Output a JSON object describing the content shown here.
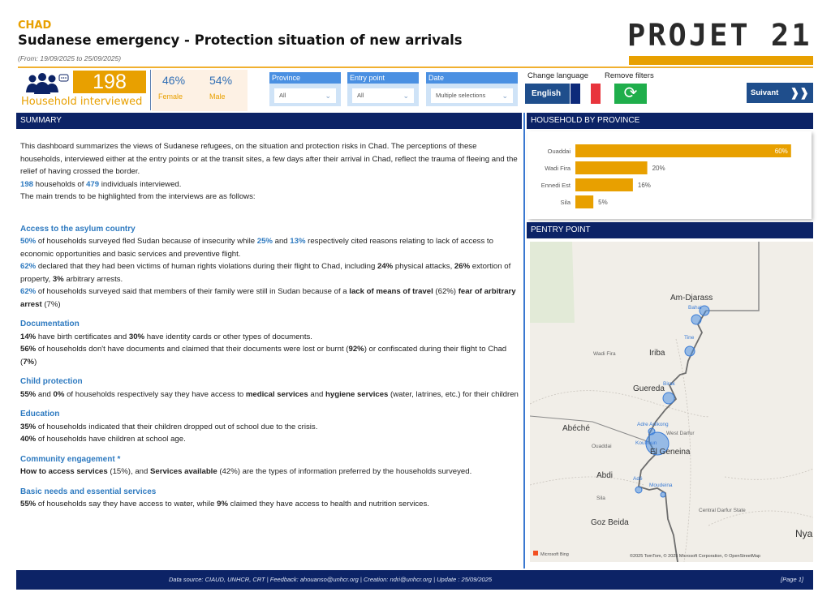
{
  "header": {
    "country": "CHAD",
    "title": "Sudanese emergency - Protection situation of new arrivals",
    "date_range": "(From: 19/09/2025  to  25/09/2025)",
    "logo_text": "PROJET 21"
  },
  "kpi": {
    "households": "198",
    "households_label": "Household interviewed",
    "female_pct": "46%",
    "female_label": "Female",
    "male_pct": "54%",
    "male_label": "Male"
  },
  "filters": [
    {
      "label": "Province",
      "value": "All"
    },
    {
      "label": "Entry point",
      "value": "All"
    },
    {
      "label": "Date",
      "value": "Multiple selections"
    }
  ],
  "controls": {
    "change_language": "Change language",
    "remove_filters": "Remove filters",
    "english": "English",
    "next": "Suivant",
    "next_icon": "double-chevron-right",
    "refresh_icon": "refresh"
  },
  "colors": {
    "accent": "#e8a000",
    "navy": "#0c2366",
    "blue_text": "#2e7ac0",
    "green": "#1fae4b"
  },
  "summary": {
    "heading": "SUMMARY",
    "blocks": [
      {
        "type": "p",
        "segs": [
          {
            "t": "This dashboard summarizes the views of Sudanese refugees, on the situation and protection risks in Chad. The perceptions of these households, interviewed either at the entry points or at the transit sites, a few days after their arrival in Chad, reflect the trauma of fleeing and the relief of having crossed the border."
          }
        ]
      },
      {
        "type": "p",
        "segs": [
          {
            "t": "198",
            "s": "blue"
          },
          {
            "t": " households of "
          },
          {
            "t": "479",
            "s": "blue"
          },
          {
            "t": " individuals interviewed."
          }
        ]
      },
      {
        "type": "p",
        "segs": [
          {
            "t": "The main trends to be highlighted from the interviews are as follows:"
          }
        ]
      },
      {
        "type": "gap"
      },
      {
        "type": "sec",
        "segs": [
          {
            "t": "Access to the asylum country"
          }
        ]
      },
      {
        "type": "p",
        "segs": [
          {
            "t": "50%",
            "s": "blue"
          },
          {
            "t": " of households surveyed fled Sudan because of insecurity while "
          },
          {
            "t": "25%",
            "s": "blue"
          },
          {
            "t": " and "
          },
          {
            "t": "13%",
            "s": "blue"
          },
          {
            "t": " respectively cited reasons relating to lack of access to economic opportunities and basic services and preventive flight."
          }
        ]
      },
      {
        "type": "p",
        "segs": [
          {
            "t": "62%",
            "s": "blue"
          },
          {
            "t": " declared that they had been victims of human rights violations during their flight to Chad, including "
          },
          {
            "t": "24%",
            "s": "b"
          },
          {
            "t": " physical attacks, "
          },
          {
            "t": "26%",
            "s": "b"
          },
          {
            "t": " extortion of property, "
          },
          {
            "t": "3%",
            "s": "b"
          },
          {
            "t": " arbitrary arrests."
          }
        ]
      },
      {
        "type": "p",
        "segs": [
          {
            "t": "62%",
            "s": "blue"
          },
          {
            "t": " of households surveyed said that members of their family were still in Sudan because of a "
          },
          {
            "t": "lack of means of travel",
            "s": "b"
          },
          {
            "t": " (62%) "
          },
          {
            "t": "fear of arbitrary arrest",
            "s": "b"
          },
          {
            "t": " (7%)"
          }
        ]
      },
      {
        "type": "sec",
        "segs": [
          {
            "t": "Documentation"
          }
        ]
      },
      {
        "type": "p",
        "segs": [
          {
            "t": "14%",
            "s": "b"
          },
          {
            "t": " have birth certificates and "
          },
          {
            "t": "30%",
            "s": "b"
          },
          {
            "t": " have identity cards or other types of documents."
          }
        ]
      },
      {
        "type": "p",
        "segs": [
          {
            "t": "56%",
            "s": "b"
          },
          {
            "t": " of households don't have documents and claimed that their documents were lost or burnt ("
          },
          {
            "t": "92%",
            "s": "b"
          },
          {
            "t": ") or confiscated during their flight to Chad ("
          },
          {
            "t": "7%",
            "s": "b"
          },
          {
            "t": ")"
          }
        ]
      },
      {
        "type": "sec",
        "segs": [
          {
            "t": "Child protection"
          }
        ]
      },
      {
        "type": "p",
        "segs": [
          {
            "t": "55%",
            "s": "b"
          },
          {
            "t": " and "
          },
          {
            "t": "0%",
            "s": "b"
          },
          {
            "t": " of households respectively say they have access to "
          },
          {
            "t": "medical services",
            "s": "b"
          },
          {
            "t": " and "
          },
          {
            "t": "hygiene services",
            "s": "b"
          },
          {
            "t": " (water, latrines, etc.) for their children"
          }
        ]
      },
      {
        "type": "sec",
        "segs": [
          {
            "t": "Education"
          }
        ]
      },
      {
        "type": "p",
        "segs": [
          {
            "t": "35%",
            "s": "b"
          },
          {
            "t": " of households indicated that their children dropped out of school due to the crisis."
          }
        ]
      },
      {
        "type": "p",
        "segs": [
          {
            "t": "40%",
            "s": "b"
          },
          {
            "t": " of households have children at school age."
          }
        ]
      },
      {
        "type": "sec",
        "segs": [
          {
            "t": "Community engagement *"
          }
        ]
      },
      {
        "type": "p",
        "segs": [
          {
            "t": "How to access services",
            "s": "b"
          },
          {
            "t": " (15%), and "
          },
          {
            "t": "Services available",
            "s": "b"
          },
          {
            "t": " (42%) are the types of information preferred by the households surveyed."
          }
        ]
      },
      {
        "type": "sec",
        "segs": [
          {
            "t": "Basic needs and essential services"
          }
        ]
      },
      {
        "type": "p",
        "segs": [
          {
            "t": "55%",
            "s": "b"
          },
          {
            "t": " of households say they have access to water, while "
          },
          {
            "t": "9%",
            "s": "b"
          },
          {
            "t": " claimed they have access to health and nutrition services."
          }
        ]
      }
    ]
  },
  "province_panel": {
    "heading": "HOUSEHOLD BY PROVINCE"
  },
  "chart_data": {
    "type": "bar",
    "orientation": "horizontal",
    "categories": [
      "Ouaddai",
      "Wadi Fira",
      "Ennedi Est",
      "Sila"
    ],
    "values": [
      60,
      20,
      16,
      5
    ],
    "data_labels": [
      "60%",
      "20%",
      "16%",
      "5%"
    ],
    "unit": "%",
    "color": "#e8a000",
    "grid": false
  },
  "entry_panel": {
    "heading": "PENTRY POINT",
    "places": [
      "Am-Djarass",
      "Iriba",
      "Guereda",
      "Abéché",
      "El Geneina",
      "Abdi",
      "Goz Beida",
      "Wadi Fira",
      "Ouaddai",
      "Sila",
      "West Darfur",
      "Central Darfur State",
      "Nya"
    ],
    "entry_points": [
      "Bahai",
      "Tine",
      "Birak",
      "Adre Adikong",
      "Koufroun",
      "Adé",
      "Moudeina"
    ],
    "attribution": "©2025 TomTom, © 2025 Microsoft Corporation, © OpenStreetMap",
    "provider": "Microsoft Bing"
  },
  "footer": {
    "text": "Data source: CIAUD, UNHCR, CRT  |  Feedback: ahouanso@unhcr.org  |  Creation: ndri@unhcr.org  |  Update :  25/09/2025",
    "page": "[Page 1]"
  }
}
